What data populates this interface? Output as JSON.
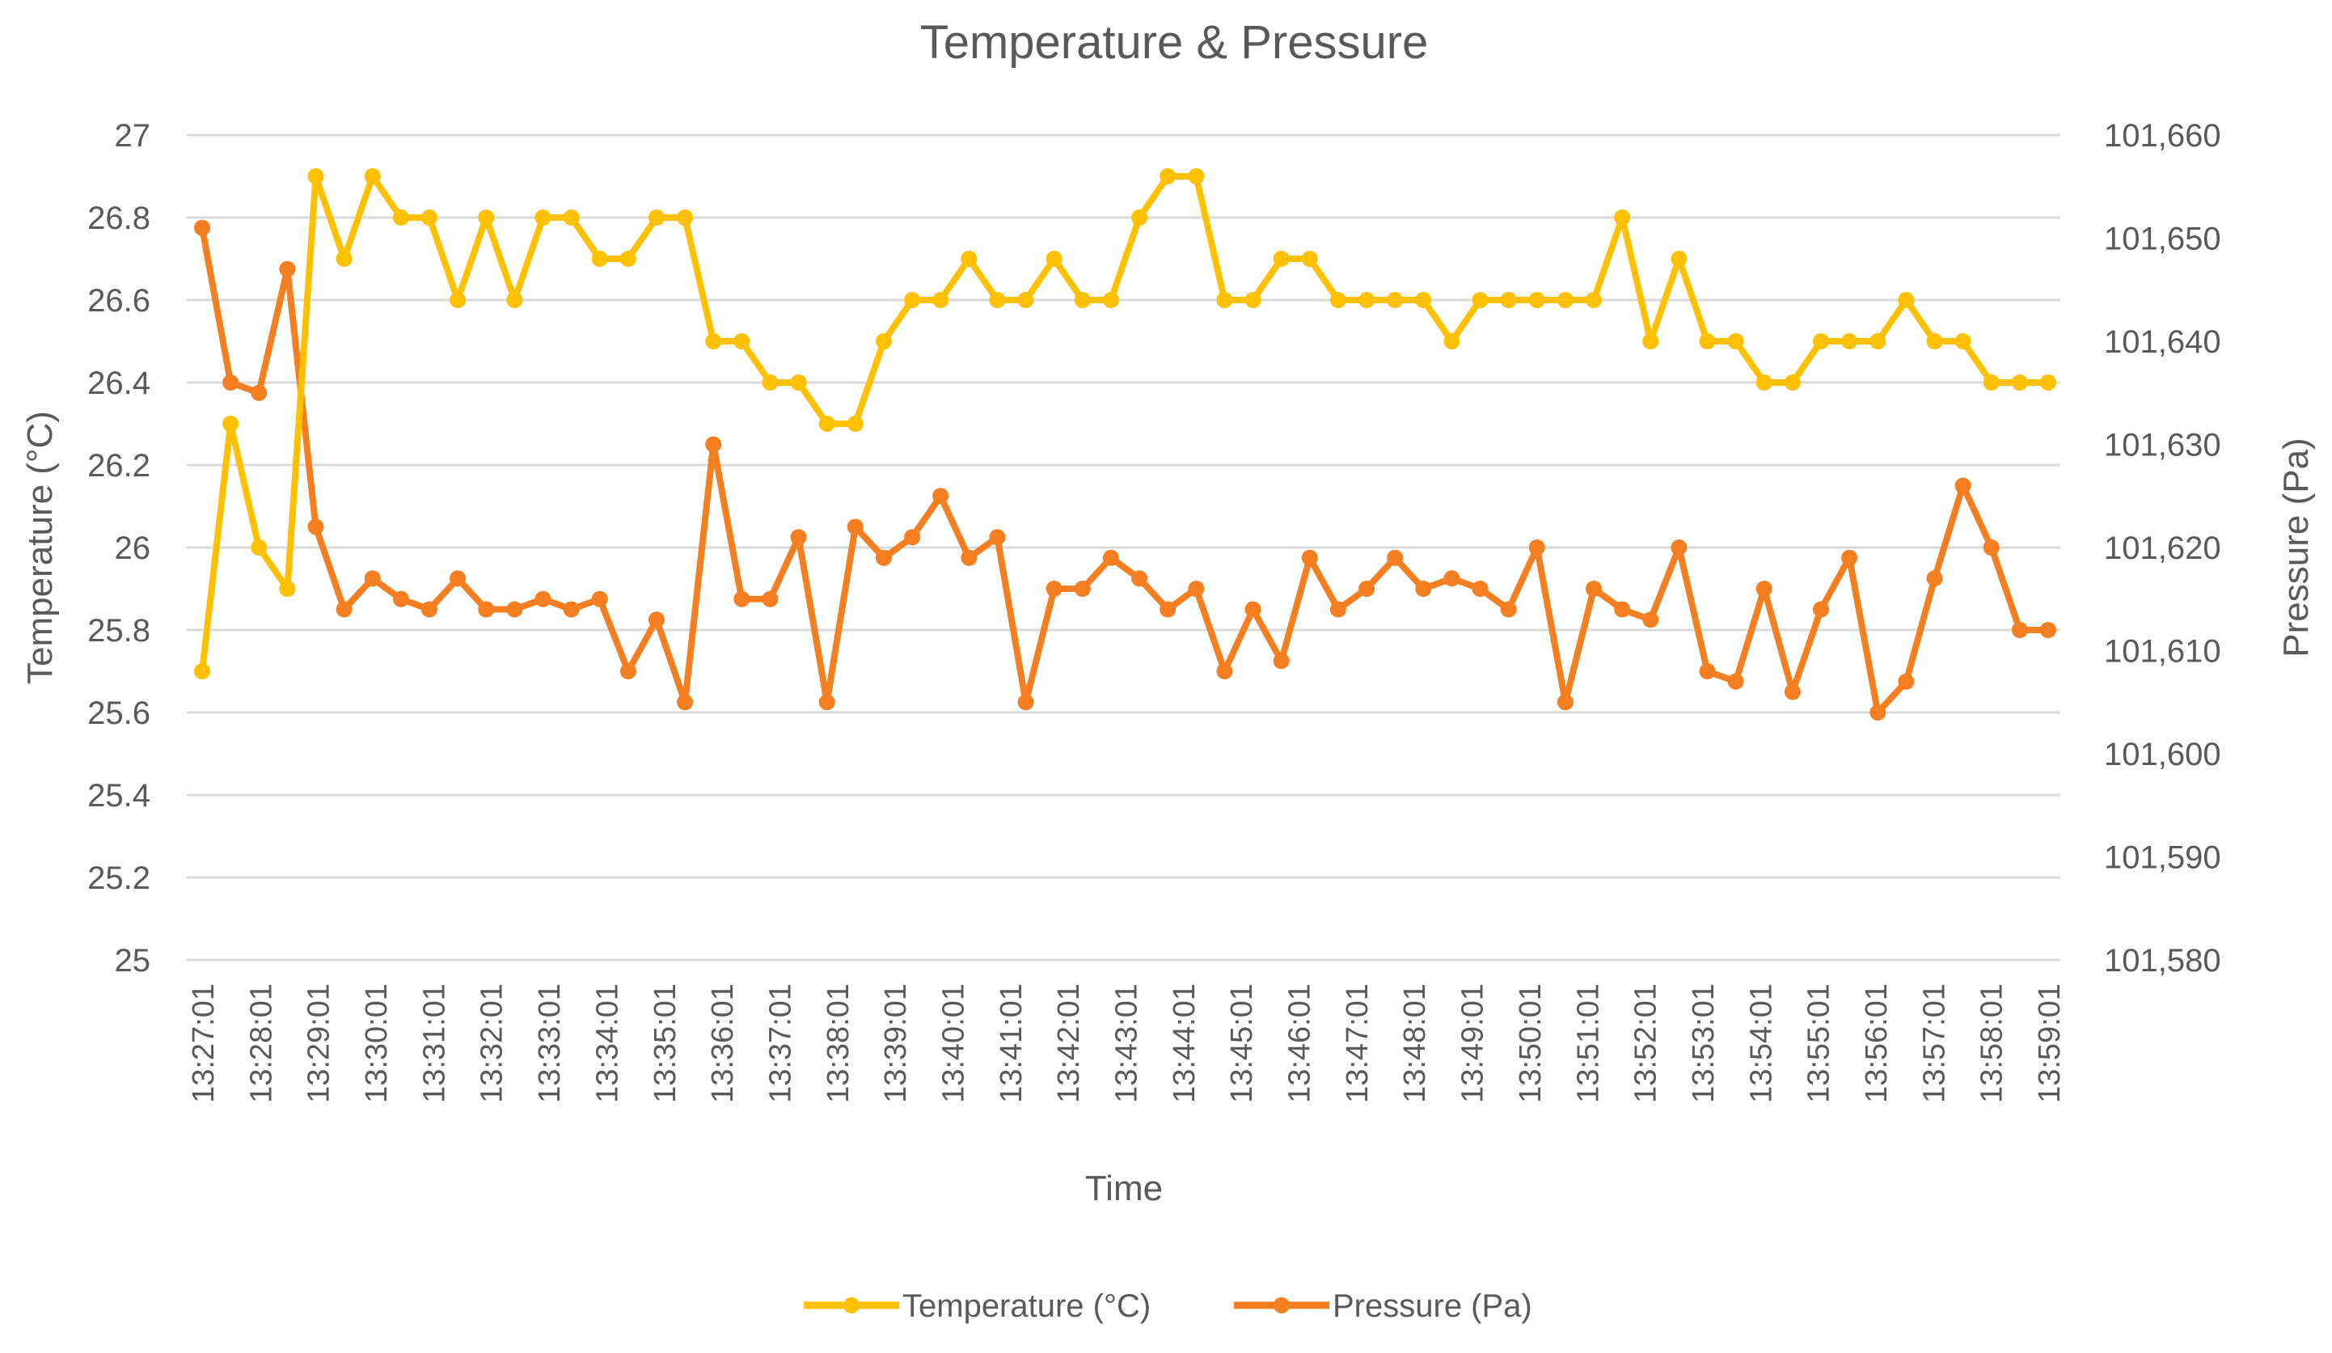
{
  "chart_data": {
    "type": "line",
    "title": "Temperature & Pressure",
    "xlabel": "Time",
    "ylabel_left": "Temperature (°C)",
    "ylabel_right": "Pressure (Pa)",
    "grid": true,
    "legend_position": "bottom",
    "ylim_left": [
      25,
      27
    ],
    "yticks_left": [
      "25",
      "25.2",
      "25.4",
      "25.6",
      "25.8",
      "26",
      "26.2",
      "26.4",
      "26.6",
      "26.8",
      "27"
    ],
    "ylim_right": [
      101580,
      101660
    ],
    "yticks_right": [
      "101,580",
      "101,590",
      "101,600",
      "101,610",
      "101,620",
      "101,630",
      "101,640",
      "101,650",
      "101,660"
    ],
    "xtick_labels": [
      "13:27:01",
      "13:28:01",
      "13:29:01",
      "13:30:01",
      "13:31:01",
      "13:32:01",
      "13:33:01",
      "13:34:01",
      "13:35:01",
      "13:36:01",
      "13:37:01",
      "13:38:01",
      "13:39:01",
      "13:40:01",
      "13:41:01",
      "13:42:01",
      "13:43:01",
      "13:44:01",
      "13:45:01",
      "13:46:01",
      "13:47:01",
      "13:48:01",
      "13:49:01",
      "13:50:01",
      "13:51:01",
      "13:52:01",
      "13:53:01",
      "13:54:01",
      "13:55:01",
      "13:56:01",
      "13:57:01",
      "13:58:01",
      "13:59:01"
    ],
    "n_points": 66,
    "series": [
      {
        "name": "Temperature (°C)",
        "axis": "left",
        "color": "#FFC000",
        "values": [
          25.7,
          26.3,
          26.0,
          25.9,
          26.9,
          26.7,
          26.9,
          26.8,
          26.8,
          26.6,
          26.8,
          26.6,
          26.8,
          26.8,
          26.7,
          26.7,
          26.8,
          26.8,
          26.5,
          26.5,
          26.4,
          26.4,
          26.3,
          26.3,
          26.5,
          26.6,
          26.6,
          26.7,
          26.6,
          26.6,
          26.7,
          26.6,
          26.6,
          26.8,
          26.9,
          26.9,
          26.6,
          26.6,
          26.7,
          26.7,
          26.6,
          26.6,
          26.6,
          26.6,
          26.5,
          26.6,
          26.6,
          26.6,
          26.6,
          26.6,
          26.8,
          26.5,
          26.7,
          26.5,
          26.5,
          26.4,
          26.4,
          26.5,
          26.5,
          26.5,
          26.6,
          26.5,
          26.5,
          26.4,
          26.4,
          26.4
        ]
      },
      {
        "name": "Pressure (Pa)",
        "axis": "right",
        "color": "#F57F20",
        "values": [
          101651,
          101636,
          101635,
          101647,
          101622,
          101614,
          101617,
          101615,
          101614,
          101617,
          101614,
          101614,
          101615,
          101614,
          101615,
          101608,
          101613,
          101605,
          101630,
          101615,
          101615,
          101621,
          101605,
          101622,
          101619,
          101621,
          101625,
          101619,
          101621,
          101605,
          101616,
          101616,
          101619,
          101617,
          101614,
          101616,
          101608,
          101614,
          101609,
          101619,
          101614,
          101616,
          101619,
          101616,
          101617,
          101616,
          101614,
          101620,
          101605,
          101616,
          101614,
          101613,
          101620,
          101608,
          101607,
          101616,
          101606,
          101614,
          101619,
          101604,
          101607,
          101617,
          101626,
          101620,
          101612,
          101612
        ]
      }
    ]
  }
}
